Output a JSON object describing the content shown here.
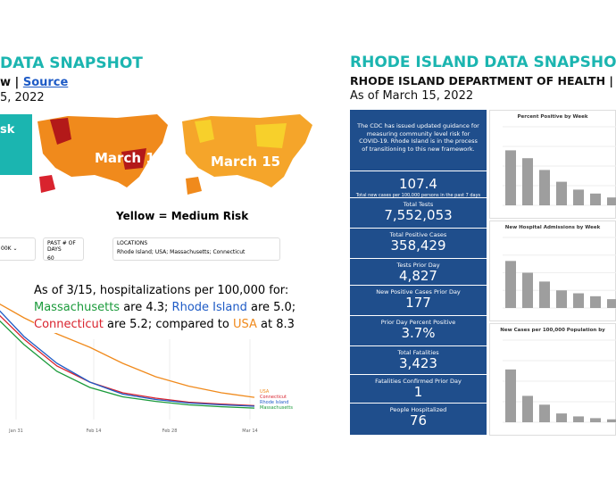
{
  "left": {
    "title": "DATA SNAPSHOT",
    "view": "w |",
    "source": "Source",
    "date": "5, 2022",
    "risk_box": "sk",
    "maps": {
      "label1": "March 1",
      "label2": "March 15",
      "caption": "Yellow = Medium Risk"
    },
    "filters": [
      {
        "value": "00K"
      },
      {
        "label": "PAST # OF DAYS",
        "value": "60"
      },
      {
        "label": "LOCATIONS",
        "value": "Rhode Island; USA; Massachusetts; Connecticut"
      }
    ],
    "note": {
      "line1": "As of 3/15, hospitalizations per 100,000 for:",
      "line2": [
        "Massachusetts",
        " are 4.3; ",
        "Rhode Island",
        " are 5.0;"
      ],
      "line3": [
        "Connecticut",
        " are 5.2; compared to ",
        "USA",
        " at 8.3"
      ]
    },
    "chart": {
      "type": "line",
      "xlabels": [
        "Jan 31",
        "Feb 14",
        "Feb 28",
        "Mar 14"
      ],
      "ylim": [
        0,
        45
      ],
      "series": [
        {
          "name": "USA",
          "color": "#f08a1c",
          "values": [
            45,
            38,
            32,
            27,
            21,
            16,
            12.5,
            10,
            8.3
          ]
        },
        {
          "name": "Connecticut",
          "color": "#d9232e",
          "values": [
            42,
            30,
            20,
            14,
            10,
            8,
            6.5,
            5.8,
            5.2
          ]
        },
        {
          "name": "Rhode Island",
          "color": "#1e5bc6",
          "values": [
            44,
            31,
            21,
            14,
            9.5,
            7.5,
            6.2,
            5.5,
            5.0
          ]
        },
        {
          "name": "Massachusetts",
          "color": "#1a9a3a",
          "values": [
            40,
            28,
            18,
            12,
            8.5,
            6.8,
            5.5,
            4.8,
            4.3
          ]
        }
      ]
    }
  },
  "right": {
    "title": "RHODE ISLAND DATA SNAPSHOT",
    "subtitle": "RHODE ISLAND DEPARTMENT OF HEALTH |",
    "date": "As of March 15, 2022",
    "intro": "The CDC has issued updated guidance for measuring community level risk for COVID-19. Rhode Island is in the process of transitioning to this new framework.",
    "stats": [
      {
        "value": "107.4",
        "label": "Total new cases per 100,000 persons in the past 7 days"
      },
      {
        "label": "Total Tests",
        "value": "7,552,053"
      },
      {
        "label": "Total Positive Cases",
        "value": "358,429"
      },
      {
        "label": "Tests Prior Day",
        "value": "4,827"
      },
      {
        "label": "New Positive Cases Prior Day",
        "value": "177"
      },
      {
        "label": "Prior Day Percent Positive",
        "value": "3.7%"
      },
      {
        "label": "Total Fatalities",
        "value": "3,423"
      },
      {
        "label": "Fatalities Confirmed Prior Day",
        "value": "1"
      },
      {
        "label": "People Hospitalized",
        "value": "76"
      }
    ],
    "charts": [
      {
        "type": "bar",
        "title": "Percent Positive by Week",
        "ylim": [
          0,
          20
        ],
        "values": [
          14,
          12,
          9,
          6,
          4,
          3,
          2
        ],
        "color": "#9e9e9e"
      },
      {
        "type": "bar",
        "title": "New Hospital Admissions by Week",
        "ylim": [
          0,
          12
        ],
        "values": [
          8,
          6,
          4.5,
          3,
          2.5,
          2,
          1.5
        ],
        "color": "#9e9e9e"
      },
      {
        "type": "bar",
        "title": "New Cases per 100,000 Population by",
        "ylim": [
          0,
          14
        ],
        "values": [
          9,
          4.5,
          3,
          1.5,
          1,
          0.7,
          0.5
        ],
        "color": "#9e9e9e"
      }
    ]
  }
}
